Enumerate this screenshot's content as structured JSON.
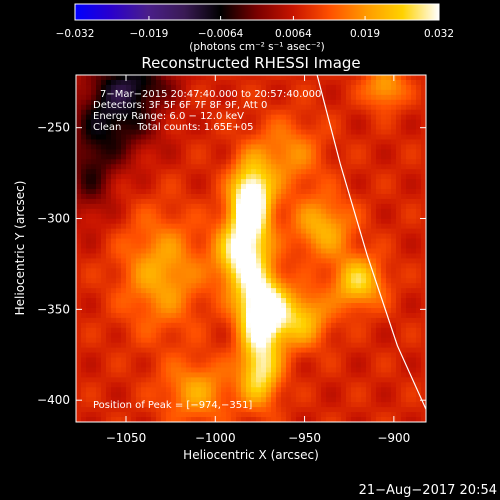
{
  "chart_data": {
    "type": "heatmap",
    "title": "Reconstructed RHESSI Image",
    "xlabel": "Heliocentric X (arcsec)",
    "ylabel": "Heliocentric Y (arcsec)",
    "xlim": [
      -1078,
      -882
    ],
    "ylim": [
      -412,
      -221
    ],
    "x_ticks": [
      -1050,
      -1000,
      -950,
      -900
    ],
    "x_tick_labels": [
      "−1050",
      "−1000",
      "−950",
      "−900"
    ],
    "y_ticks": [
      -250,
      -300,
      -350,
      -400
    ],
    "y_tick_labels": [
      "−250",
      "−300",
      "−350",
      "−400"
    ],
    "colorbar": {
      "min": -0.032,
      "max": 0.032,
      "ticks": [
        -0.032,
        -0.019,
        -0.0064,
        0.0064,
        0.019,
        0.032
      ],
      "tick_labels": [
        "−0.032",
        "−0.019",
        "−0.0064",
        "0.0064",
        "0.019",
        "0.032"
      ],
      "units_label": "(photons cm⁻² s⁻¹ asec⁻²)",
      "colormap": [
        "#0000ff",
        "#2a00cc",
        "#4a1f8a",
        "#3a1a55",
        "#000000",
        "#7a0000",
        "#c81400",
        "#ff5000",
        "#ff9a00",
        "#ffd200",
        "#ffffff"
      ]
    },
    "annotations": {
      "time_range": "7−Mar−2015 20:47:40.000 to 20:57:40.000",
      "detectors": "Detectors: 3F 5F 6F 7F 8F 9F, Att 0",
      "energy_range": "Energy Range: 6.0 − 12.0 keV",
      "algorithm": "Clean     Total counts: 1.65E+05",
      "peak_position": "Position of Peak = [−974,−351]"
    },
    "peak": {
      "x": -974,
      "y": -351
    },
    "sources": [
      {
        "x": -974,
        "y": -351,
        "amp": 0.032,
        "sigma_x": 9,
        "sigma_y": 14
      },
      {
        "x": -980,
        "y": -290,
        "amp": 0.03,
        "sigma_x": 8,
        "sigma_y": 14
      },
      {
        "x": -985,
        "y": -320,
        "amp": 0.024,
        "sigma_x": 10,
        "sigma_y": 14
      },
      {
        "x": -975,
        "y": -385,
        "amp": 0.02,
        "sigma_x": 8,
        "sigma_y": 13
      },
      {
        "x": -952,
        "y": -355,
        "amp": 0.016,
        "sigma_x": 11,
        "sigma_y": 11
      },
      {
        "x": -920,
        "y": -335,
        "amp": 0.018,
        "sigma_x": 10,
        "sigma_y": 10
      },
      {
        "x": -940,
        "y": -305,
        "amp": 0.014,
        "sigma_x": 12,
        "sigma_y": 12
      },
      {
        "x": -1030,
        "y": -330,
        "amp": 0.013,
        "sigma_x": 16,
        "sigma_y": 22
      },
      {
        "x": -1010,
        "y": -395,
        "amp": 0.012,
        "sigma_x": 14,
        "sigma_y": 12
      },
      {
        "x": -960,
        "y": -265,
        "amp": 0.01,
        "sigma_x": 14,
        "sigma_y": 14
      },
      {
        "x": -905,
        "y": -228,
        "amp": 0.013,
        "sigma_x": 8,
        "sigma_y": 8
      },
      {
        "x": -1055,
        "y": -240,
        "amp": -0.016,
        "sigma_x": 16,
        "sigma_y": 18
      },
      {
        "x": -1070,
        "y": -275,
        "amp": -0.01,
        "sigma_x": 10,
        "sigma_y": 18
      },
      {
        "x": -1040,
        "y": -225,
        "amp": -0.008,
        "sigma_x": 14,
        "sigma_y": 8
      }
    ],
    "background": 0.008,
    "limb_curve": [
      [
        -943,
        -221
      ],
      [
        -930,
        -270
      ],
      [
        -915,
        -320
      ],
      [
        -898,
        -370
      ],
      [
        -882,
        -405
      ]
    ],
    "grid": false
  },
  "footer": {
    "date": "21−Aug−2017 20:54"
  }
}
